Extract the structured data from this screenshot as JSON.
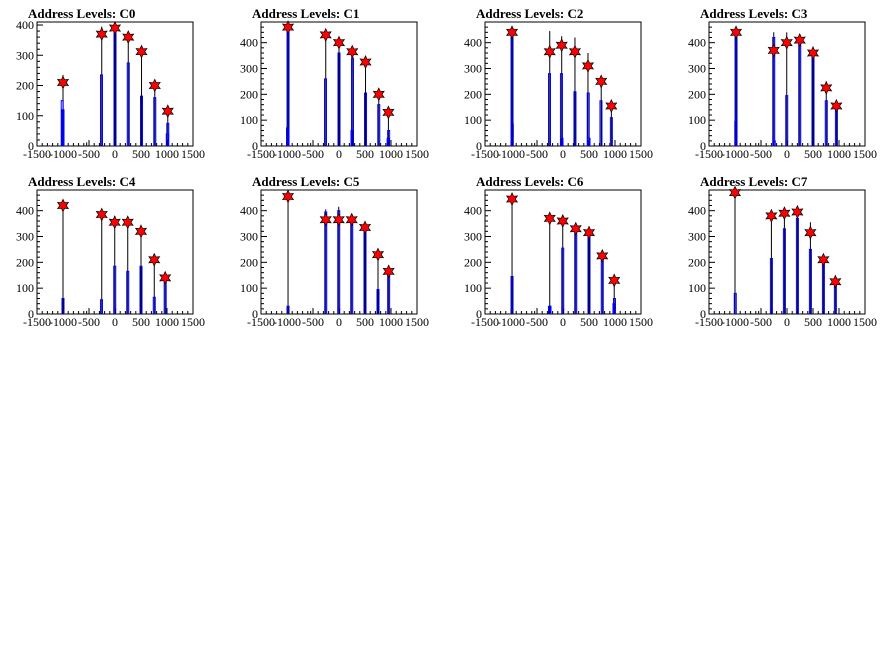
{
  "chart_data": [
    {
      "type": "bar",
      "title": "Address Levels: C0",
      "xlim": [
        -1500,
        1500
      ],
      "ylim": [
        0,
        410
      ],
      "x_ticks": [
        -1500,
        -1000,
        -500,
        0,
        500,
        1000,
        1500
      ],
      "y_ticks": [
        0,
        100,
        200,
        300,
        400
      ],
      "grid": false,
      "peaks": [
        {
          "x": -1000,
          "max": 235,
          "blue": [
            [
              -1015,
              150
            ],
            [
              -1000,
              120
            ]
          ],
          "marker": 210
        },
        {
          "x": -255,
          "max": 395,
          "blue": [
            [
              -260,
              235
            ]
          ],
          "marker": 370
        },
        {
          "x": 0,
          "max": 400,
          "blue": [
            [
              0,
              390
            ]
          ],
          "marker": 390
        },
        {
          "x": 255,
          "max": 370,
          "blue": [
            [
              255,
              275
            ]
          ],
          "marker": 360
        },
        {
          "x": 510,
          "max": 330,
          "blue": [
            [
              510,
              165
            ]
          ],
          "marker": 312
        },
        {
          "x": 765,
          "max": 210,
          "blue": [
            [
              765,
              160
            ]
          ],
          "marker": 200
        },
        {
          "x": 1015,
          "max": 125,
          "blue": [
            [
              1005,
              40
            ],
            [
              1015,
              75
            ]
          ],
          "marker": 115
        }
      ]
    },
    {
      "type": "bar",
      "title": "Address Levels: C1",
      "xlim": [
        -1500,
        1500
      ],
      "ylim": [
        0,
        480
      ],
      "x_ticks": [
        -1500,
        -1000,
        -500,
        0,
        500,
        1000,
        1500
      ],
      "y_ticks": [
        0,
        100,
        200,
        300,
        400
      ],
      "grid": false,
      "peaks": [
        {
          "x": -980,
          "max": 470,
          "blue": [
            [
              -980,
              460
            ],
            [
              -990,
              70
            ]
          ],
          "marker": 460
        },
        {
          "x": -255,
          "max": 450,
          "blue": [
            [
              -260,
              260
            ]
          ],
          "marker": 430
        },
        {
          "x": 0,
          "max": 415,
          "blue": [
            [
              0,
              360
            ]
          ],
          "marker": 400
        },
        {
          "x": 255,
          "max": 385,
          "blue": [
            [
              250,
              60
            ],
            [
              260,
              340
            ]
          ],
          "marker": 365
        },
        {
          "x": 510,
          "max": 340,
          "blue": [
            [
              510,
              205
            ]
          ],
          "marker": 325
        },
        {
          "x": 765,
          "max": 215,
          "blue": [
            [
              765,
              160
            ]
          ],
          "marker": 200
        },
        {
          "x": 950,
          "max": 145,
          "blue": [
            [
              945,
              30
            ],
            [
              955,
              60
            ]
          ],
          "marker": 130
        }
      ]
    },
    {
      "type": "bar",
      "title": "Address Levels: C2",
      "xlim": [
        -1500,
        1500
      ],
      "ylim": [
        0,
        480
      ],
      "x_ticks": [
        -1500,
        -1000,
        -500,
        0,
        500,
        1000,
        1500
      ],
      "y_ticks": [
        0,
        100,
        200,
        300,
        400
      ],
      "grid": false,
      "peaks": [
        {
          "x": -980,
          "max": 460,
          "blue": [
            [
              -980,
              455
            ],
            [
              -975,
              85
            ]
          ],
          "marker": 440
        },
        {
          "x": -255,
          "max": 445,
          "blue": [
            [
              -260,
              280
            ]
          ],
          "marker": 365
        },
        {
          "x": -25,
          "max": 425,
          "blue": [
            [
              -30,
              280
            ],
            [
              -20,
              30
            ]
          ],
          "marker": 390
        },
        {
          "x": 230,
          "max": 420,
          "blue": [
            [
              230,
              210
            ]
          ],
          "marker": 365
        },
        {
          "x": 480,
          "max": 360,
          "blue": [
            [
              485,
              205
            ],
            [
              500,
              30
            ]
          ],
          "marker": 310
        },
        {
          "x": 735,
          "max": 265,
          "blue": [
            [
              730,
              175
            ]
          ],
          "marker": 250
        },
        {
          "x": 930,
          "max": 170,
          "blue": [
            [
              930,
              110
            ]
          ],
          "marker": 155
        }
      ]
    },
    {
      "type": "bar",
      "title": "Address Levels: C3",
      "xlim": [
        -1500,
        1500
      ],
      "ylim": [
        0,
        480
      ],
      "x_ticks": [
        -1500,
        -1000,
        -500,
        0,
        500,
        1000,
        1500
      ],
      "y_ticks": [
        0,
        100,
        200,
        300,
        400
      ],
      "grid": false,
      "peaks": [
        {
          "x": -980,
          "max": 460,
          "blue": [
            [
              -980,
              450
            ],
            [
              -985,
              95
            ]
          ],
          "marker": 440
        },
        {
          "x": -255,
          "max": 440,
          "blue": [
            [
              -255,
              420
            ],
            [
              -245,
              20
            ]
          ],
          "marker": 370
        },
        {
          "x": -5,
          "max": 440,
          "blue": [
            [
              -5,
              195
            ]
          ],
          "marker": 400
        },
        {
          "x": 245,
          "max": 420,
          "blue": [
            [
              245,
              410
            ]
          ],
          "marker": 410
        },
        {
          "x": 500,
          "max": 370,
          "blue": [
            [
              500,
              350
            ]
          ],
          "marker": 360
        },
        {
          "x": 755,
          "max": 250,
          "blue": [
            [
              755,
              175
            ]
          ],
          "marker": 225
        },
        {
          "x": 950,
          "max": 165,
          "blue": [
            [
              950,
              140
            ]
          ],
          "marker": 155
        }
      ]
    },
    {
      "type": "bar",
      "title": "Address Levels: C4",
      "xlim": [
        -1500,
        1500
      ],
      "ylim": [
        0,
        480
      ],
      "x_ticks": [
        -1500,
        -1000,
        -500,
        0,
        500,
        1000,
        1500
      ],
      "y_ticks": [
        0,
        100,
        200,
        300,
        400
      ],
      "grid": false,
      "peaks": [
        {
          "x": -1000,
          "max": 440,
          "blue": [
            [
              -1000,
              60
            ]
          ],
          "marker": 420
        },
        {
          "x": -255,
          "max": 405,
          "blue": [
            [
              -260,
              55
            ]
          ],
          "marker": 385
        },
        {
          "x": -5,
          "max": 380,
          "blue": [
            [
              -5,
              185
            ]
          ],
          "marker": 355
        },
        {
          "x": 245,
          "max": 370,
          "blue": [
            [
              245,
              165
            ]
          ],
          "marker": 355
        },
        {
          "x": 500,
          "max": 335,
          "blue": [
            [
              500,
              185
            ]
          ],
          "marker": 320
        },
        {
          "x": 755,
          "max": 230,
          "blue": [
            [
              755,
              65
            ]
          ],
          "marker": 210
        },
        {
          "x": 965,
          "max": 155,
          "blue": [
            [
              965,
              140
            ]
          ],
          "marker": 140
        }
      ]
    },
    {
      "type": "bar",
      "title": "Address Levels: C5",
      "xlim": [
        -1500,
        1500
      ],
      "ylim": [
        0,
        480
      ],
      "x_ticks": [
        -1500,
        -1000,
        -500,
        0,
        500,
        1000,
        1500
      ],
      "y_ticks": [
        0,
        100,
        200,
        300,
        400
      ],
      "grid": false,
      "peaks": [
        {
          "x": -980,
          "max": 470,
          "blue": [
            [
              -980,
              30
            ]
          ],
          "marker": 455
        },
        {
          "x": -255,
          "max": 405,
          "blue": [
            [
              -255,
              395
            ]
          ],
          "marker": 365
        },
        {
          "x": -5,
          "max": 415,
          "blue": [
            [
              -5,
              400
            ]
          ],
          "marker": 365
        },
        {
          "x": 245,
          "max": 375,
          "blue": [
            [
              245,
              360
            ]
          ],
          "marker": 365
        },
        {
          "x": 500,
          "max": 350,
          "blue": [
            [
              500,
              330
            ]
          ],
          "marker": 335
        },
        {
          "x": 750,
          "max": 240,
          "blue": [
            [
              750,
              95
            ]
          ],
          "marker": 230
        },
        {
          "x": 955,
          "max": 175,
          "blue": [
            [
              955,
              165
            ]
          ],
          "marker": 165
        }
      ]
    },
    {
      "type": "bar",
      "title": "Address Levels: C6",
      "xlim": [
        -1500,
        1500
      ],
      "ylim": [
        0,
        480
      ],
      "x_ticks": [
        -1500,
        -1000,
        -500,
        0,
        500,
        1000,
        1500
      ],
      "y_ticks": [
        0,
        100,
        200,
        300,
        400
      ],
      "grid": false,
      "peaks": [
        {
          "x": -980,
          "max": 460,
          "blue": [
            [
              -980,
              145
            ]
          ],
          "marker": 445
        },
        {
          "x": -255,
          "max": 385,
          "blue": [
            [
              -260,
              30
            ],
            [
              -250,
              30
            ]
          ],
          "marker": 370
        },
        {
          "x": -5,
          "max": 380,
          "blue": [
            [
              -5,
              255
            ]
          ],
          "marker": 360
        },
        {
          "x": 245,
          "max": 345,
          "blue": [
            [
              245,
              320
            ]
          ],
          "marker": 330
        },
        {
          "x": 500,
          "max": 330,
          "blue": [
            [
              500,
              310
            ]
          ],
          "marker": 315
        },
        {
          "x": 755,
          "max": 235,
          "blue": [
            [
              755,
              215
            ]
          ],
          "marker": 225
        },
        {
          "x": 985,
          "max": 145,
          "blue": [
            [
              980,
              40
            ],
            [
              990,
              60
            ]
          ],
          "marker": 130
        }
      ]
    },
    {
      "type": "bar",
      "title": "Address Levels: C7",
      "xlim": [
        -1500,
        1500
      ],
      "ylim": [
        0,
        480
      ],
      "x_ticks": [
        -1500,
        -1000,
        -500,
        0,
        500,
        1000,
        1500
      ],
      "y_ticks": [
        0,
        100,
        200,
        300,
        400
      ],
      "grid": false,
      "peaks": [
        {
          "x": -1000,
          "max": 480,
          "blue": [
            [
              -995,
              80
            ]
          ],
          "marker": 470
        },
        {
          "x": -300,
          "max": 395,
          "blue": [
            [
              -300,
              215
            ]
          ],
          "marker": 380
        },
        {
          "x": -50,
          "max": 410,
          "blue": [
            [
              -50,
              330
            ]
          ],
          "marker": 390
        },
        {
          "x": 200,
          "max": 400,
          "blue": [
            [
              200,
              370
            ]
          ],
          "marker": 395
        },
        {
          "x": 450,
          "max": 355,
          "blue": [
            [
              450,
              250
            ]
          ],
          "marker": 315
        },
        {
          "x": 700,
          "max": 225,
          "blue": [
            [
              700,
              205
            ]
          ],
          "marker": 210
        },
        {
          "x": 930,
          "max": 145,
          "blue": [
            [
              930,
              130
            ]
          ],
          "marker": 125
        }
      ]
    }
  ]
}
